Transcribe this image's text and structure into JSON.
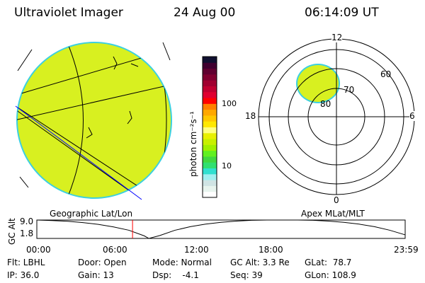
{
  "header": {
    "instrument": "Ultraviolet Imager",
    "date": "24 Aug 00",
    "time": "06:14:09 UT"
  },
  "colorbar": {
    "label": "photon cm⁻²s⁻¹",
    "ticks": [
      "100",
      "10"
    ],
    "colors": [
      "#ffffff",
      "#e8f4ee",
      "#d0e4e4",
      "#a0f0f0",
      "#30e0d0",
      "#30e070",
      "#40d840",
      "#60f020",
      "#a0f000",
      "#c8f000",
      "#e8f000",
      "#ffff80",
      "#ffe800",
      "#ffc800",
      "#ffa800",
      "#ff8000",
      "#ff0000",
      "#e00030",
      "#c00030",
      "#a00030",
      "#800030",
      "#600030",
      "#400030",
      "#101030"
    ]
  },
  "polar": {
    "lat_labels": [
      "80",
      "70",
      "60"
    ],
    "mlt_labels": [
      "12",
      "18",
      "6",
      "0"
    ]
  },
  "chart_data": {
    "type": "line",
    "title": "",
    "left_label": "Geographic Lat/Lon",
    "right_label": "Apex MLat/MLT",
    "ylabel": "GC Alt",
    "yticks": [
      "9.0",
      "1.8"
    ],
    "ylim": [
      1.8,
      9.0
    ],
    "xticks": [
      "00:00",
      "06:00",
      "12:00",
      "18:00",
      "23:59"
    ],
    "xlim_hours": [
      0,
      24
    ],
    "current_time_hours": 6.236,
    "x": [
      0,
      1,
      2,
      3,
      4,
      5,
      6,
      7,
      7.3,
      8,
      9,
      10,
      11,
      12,
      13,
      14,
      15,
      16,
      17,
      18,
      19,
      20,
      21,
      22,
      23,
      24
    ],
    "y": [
      9.0,
      8.8,
      8.5,
      8.0,
      7.3,
      6.3,
      5.0,
      2.8,
      1.8,
      2.9,
      5.0,
      6.4,
      7.4,
      8.1,
      8.6,
      8.9,
      9.0,
      9.0,
      9.0,
      8.9,
      8.6,
      8.1,
      7.4,
      6.4,
      5.0,
      3.2
    ]
  },
  "status": {
    "flt": "Flt: LBHL",
    "ip": "IP: 36.0",
    "door": "Door: Open",
    "gain": "Gain: 13",
    "mode": "Mode: Normal",
    "dsp": "Dsp:    -4.1",
    "gcalt": "GC Alt: 3.3 Re",
    "seq": "Seq: 39",
    "glat": "GLat:  78.7",
    "glon": "GLon: 108.9"
  }
}
